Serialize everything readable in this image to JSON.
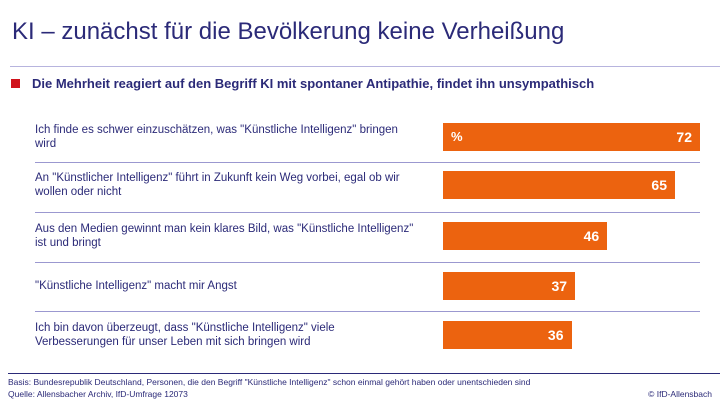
{
  "title": "KI – zunächst für die Bevölkerung keine Verheißung",
  "subtitle": "Die Mehrheit reagiert auf den Begriff KI mit spontaner Antipathie, findet ihn unsympathisch",
  "colors": {
    "bar": "#ec630f",
    "accent": "#d0121b",
    "text": "#2b2a78"
  },
  "chart_data": {
    "type": "bar",
    "orientation": "horizontal",
    "unit": "%",
    "xlim": [
      0,
      72
    ],
    "categories": [
      "Ich finde es schwer einzuschätzen, was \"Künstliche Intelligenz\" bringen wird",
      "An \"Künstlicher Intelligenz\" führt in Zukunft kein Weg vorbei, egal ob wir wollen oder nicht",
      "Aus den Medien gewinnt man kein klares Bild, was \"Künstliche Intelligenz\" ist und bringt",
      "\"Künstliche Intelligenz\" macht mir Angst",
      "Ich bin davon überzeugt, dass \"Künstliche Intelligenz\" viele Verbesserungen für unser Leben mit sich bringen wird"
    ],
    "values": [
      72,
      65,
      46,
      37,
      36
    ]
  },
  "footer": {
    "basis": "Basis: Bundesrepublik Deutschland, Personen, die den Begriff \"Künstliche Intelligenz\" schon einmal gehört haben oder unentschieden sind",
    "source": "Quelle: Allensbacher Archiv, IfD-Umfrage 12073",
    "copyright": "© IfD-Allensbach"
  }
}
